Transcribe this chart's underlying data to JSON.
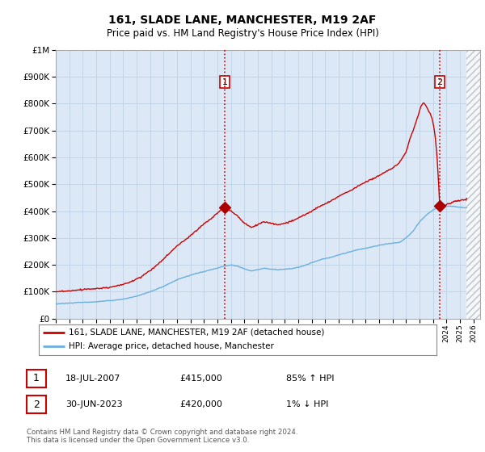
{
  "title": "161, SLADE LANE, MANCHESTER, M19 2AF",
  "subtitle": "Price paid vs. HM Land Registry's House Price Index (HPI)",
  "legend_line1": "161, SLADE LANE, MANCHESTER, M19 2AF (detached house)",
  "legend_line2": "HPI: Average price, detached house, Manchester",
  "transaction1_date": "18-JUL-2007",
  "transaction1_price": "£415,000",
  "transaction1_hpi": "85% ↑ HPI",
  "transaction2_date": "30-JUN-2023",
  "transaction2_price": "£420,000",
  "transaction2_hpi": "1% ↓ HPI",
  "footer": "Contains HM Land Registry data © Crown copyright and database right 2024.\nThis data is licensed under the Open Government Licence v3.0.",
  "hpi_color": "#6ab0de",
  "price_color": "#cc0000",
  "vline_color": "#cc0000",
  "dot_color": "#aa0000",
  "background_color": "#ffffff",
  "chart_bg_color": "#dce8f5",
  "grid_color": "#b8cde0",
  "ylim_max": 1000000,
  "xlim_start": 1995.0,
  "xlim_end": 2026.5,
  "t1_year": 2007.54,
  "t1_price": 415000,
  "t2_year": 2023.5,
  "t2_price": 420000
}
